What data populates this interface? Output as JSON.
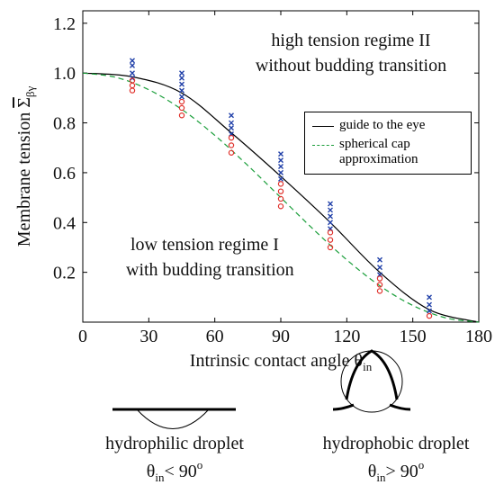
{
  "chart_data": {
    "type": "line",
    "ylabel": {
      "text": "Membrane tension",
      "symbol": "Σ",
      "subscript": "βγ"
    },
    "xlabel": {
      "text": "Intrinsic contact angle θ",
      "subscript": "in"
    },
    "xlim": [
      0,
      180
    ],
    "xticks": [
      0,
      30,
      60,
      90,
      120,
      150,
      180
    ],
    "ylim": [
      0,
      1.25
    ],
    "yticks": [
      0.2,
      0.4,
      0.6,
      {
        "value": 1,
        "label": "1.0"
      },
      0.8,
      1.2
    ],
    "legend": "upper right",
    "series": [
      {
        "name": "guide to the eye",
        "color": "#000000",
        "style": "solid",
        "x": [
          0,
          22.5,
          45,
          67.5,
          90,
          112.5,
          135,
          157.5,
          180
        ],
        "values": [
          1,
          0.985,
          0.92,
          0.76,
          0.585,
          0.4,
          0.2,
          0.05,
          0
        ]
      },
      {
        "name": "spherical cap approximation",
        "color": "#1a9e3a",
        "style": "dashed",
        "x": [
          0,
          15,
          30,
          45,
          60,
          75,
          90,
          105,
          120,
          135,
          150,
          165,
          180
        ],
        "values": [
          1,
          0.983,
          0.933,
          0.854,
          0.75,
          0.629,
          0.5,
          0.371,
          0.25,
          0.146,
          0.067,
          0.017,
          0
        ]
      }
    ],
    "points": [
      {
        "marker": "x",
        "color": "#1f3fa8",
        "x": [
          22.5,
          22.5,
          22.5,
          22.5,
          45,
          45,
          45,
          45,
          45,
          67.5,
          67.5,
          67.5,
          67.5,
          90,
          90,
          90,
          90,
          90,
          112.5,
          112.5,
          112.5,
          112.5,
          112.5,
          135,
          135,
          135,
          157.5,
          157.5,
          157.5
        ],
        "values": [
          1.05,
          1.03,
          1.0,
          0.98,
          1.0,
          0.98,
          0.955,
          0.93,
          0.905,
          0.83,
          0.8,
          0.78,
          0.755,
          0.675,
          0.65,
          0.625,
          0.6,
          0.575,
          0.475,
          0.45,
          0.425,
          0.4,
          0.375,
          0.25,
          0.22,
          0.19,
          0.1,
          0.07,
          0.045
        ]
      },
      {
        "marker": "o",
        "color": "#e0302a",
        "x": [
          22.5,
          22.5,
          22.5,
          45,
          45,
          45,
          67.5,
          67.5,
          67.5,
          90,
          90,
          90,
          90,
          112.5,
          112.5,
          112.5,
          135,
          135,
          135,
          157.5
        ],
        "values": [
          0.97,
          0.95,
          0.93,
          0.885,
          0.86,
          0.83,
          0.74,
          0.71,
          0.68,
          0.555,
          0.525,
          0.495,
          0.465,
          0.36,
          0.33,
          0.3,
          0.175,
          0.15,
          0.125,
          0.025
        ]
      }
    ],
    "annotations": [
      "high tension regime II",
      "without budding transition",
      "low tension regime I",
      "with budding transition"
    ],
    "droplets": [
      {
        "label": "hydrophilic droplet",
        "symbol": "θ",
        "subscript": "in",
        "relation": "< 90",
        "superscript": "o"
      },
      {
        "label": "hydrophobic droplet",
        "symbol": "θ",
        "subscript": "in",
        "relation": "> 90",
        "superscript": "o"
      }
    ]
  }
}
